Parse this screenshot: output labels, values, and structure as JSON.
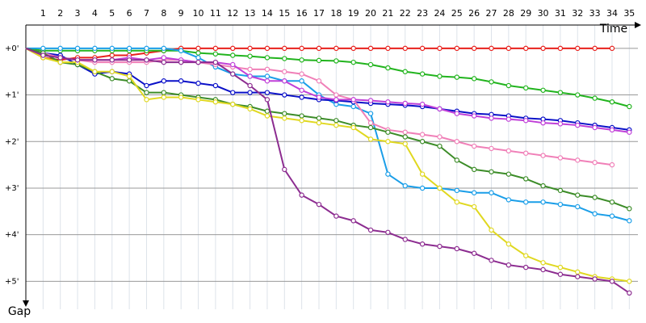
{
  "chart_data": {
    "type": "line",
    "xlabel": "Time",
    "ylabel": "Gap",
    "x": [
      0,
      1,
      2,
      3,
      4,
      5,
      6,
      7,
      8,
      9,
      10,
      11,
      12,
      13,
      14,
      15,
      16,
      17,
      18,
      19,
      20,
      21,
      22,
      23,
      24,
      25,
      26,
      27,
      28,
      29,
      30,
      31,
      32,
      33,
      34,
      35
    ],
    "xlim": [
      0,
      35.5
    ],
    "xticks": [
      1,
      2,
      3,
      4,
      5,
      6,
      7,
      8,
      9,
      10,
      11,
      12,
      13,
      14,
      15,
      16,
      17,
      18,
      19,
      20,
      21,
      22,
      23,
      24,
      25,
      26,
      27,
      28,
      29,
      30,
      31,
      32,
      33,
      34,
      35
    ],
    "ylim": [
      -0.5,
      5.6
    ],
    "yticks": [
      {
        "value": 0,
        "label": "+0'"
      },
      {
        "value": 1,
        "label": "+1'"
      },
      {
        "value": 2,
        "label": "+2'"
      },
      {
        "value": 3,
        "label": "+3'"
      },
      {
        "value": 4,
        "label": "+4'"
      },
      {
        "value": 5,
        "label": "+5'"
      }
    ],
    "grid": true,
    "series": [
      {
        "color": "#e8201c",
        "values": [
          0,
          0.2,
          0.25,
          0.2,
          0.2,
          0.15,
          0.15,
          0.1,
          0.05,
          0,
          0,
          0,
          0,
          0,
          0,
          0,
          0,
          0,
          0,
          0,
          0,
          0,
          0,
          0,
          0,
          0,
          0,
          0,
          0,
          0,
          0,
          0,
          0,
          0,
          0,
          null
        ]
      },
      {
        "color": "#22b41e",
        "values": [
          0,
          0.05,
          0.05,
          0.05,
          0.05,
          0.05,
          0.05,
          0.05,
          0.05,
          0.05,
          0.1,
          0.12,
          0.15,
          0.17,
          0.2,
          0.22,
          0.25,
          0.26,
          0.27,
          0.3,
          0.35,
          0.42,
          0.5,
          0.55,
          0.6,
          0.62,
          0.65,
          0.72,
          0.8,
          0.85,
          0.9,
          0.95,
          1.0,
          1.07,
          1.15,
          1.25
        ]
      },
      {
        "color": "#1a9ee8",
        "values": [
          0,
          0,
          0,
          0,
          0,
          0,
          0,
          0,
          0,
          0.05,
          0.2,
          0.4,
          0.55,
          0.6,
          0.6,
          0.7,
          0.7,
          1.0,
          1.2,
          1.25,
          1.4,
          2.7,
          2.95,
          3.0,
          3.0,
          3.05,
          3.1,
          3.1,
          3.25,
          3.3,
          3.3,
          3.35,
          3.4,
          3.55,
          3.6,
          3.7
        ]
      },
      {
        "color": "#0a10c8",
        "values": [
          0,
          0.1,
          0.15,
          0.35,
          0.55,
          0.5,
          0.55,
          0.8,
          0.7,
          0.7,
          0.75,
          0.8,
          0.95,
          0.95,
          0.95,
          1.0,
          1.05,
          1.1,
          1.12,
          1.15,
          1.18,
          1.2,
          1.22,
          1.25,
          1.3,
          1.35,
          1.4,
          1.42,
          1.45,
          1.5,
          1.52,
          1.55,
          1.6,
          1.65,
          1.7,
          1.75
        ]
      },
      {
        "color": "#f080b8",
        "values": [
          0,
          0.1,
          0.2,
          0.25,
          0.3,
          0.3,
          0.3,
          0.3,
          0.25,
          0.25,
          0.3,
          0.35,
          0.4,
          0.45,
          0.45,
          0.5,
          0.55,
          0.7,
          1.0,
          1.1,
          1.6,
          1.75,
          1.8,
          1.85,
          1.9,
          2.0,
          2.1,
          2.15,
          2.2,
          2.25,
          2.3,
          2.35,
          2.4,
          2.45,
          2.5,
          null
        ]
      },
      {
        "color": "#c040d8",
        "values": [
          0,
          0.15,
          0.2,
          0.25,
          0.25,
          0.25,
          0.2,
          0.25,
          0.2,
          0.25,
          0.3,
          0.3,
          0.35,
          0.6,
          0.7,
          0.7,
          0.9,
          1.05,
          1.1,
          1.1,
          1.12,
          1.15,
          1.18,
          1.2,
          1.3,
          1.4,
          1.45,
          1.5,
          1.52,
          1.55,
          1.6,
          1.62,
          1.65,
          1.7,
          1.75,
          1.8
        ]
      },
      {
        "color": "#3c8c28",
        "values": [
          0,
          0.1,
          0.3,
          0.35,
          0.5,
          0.65,
          0.7,
          0.95,
          0.95,
          1.0,
          1.05,
          1.1,
          1.2,
          1.25,
          1.35,
          1.4,
          1.45,
          1.5,
          1.55,
          1.65,
          1.7,
          1.8,
          1.9,
          2.0,
          2.1,
          2.4,
          2.6,
          2.65,
          2.7,
          2.8,
          2.95,
          3.05,
          3.15,
          3.2,
          3.3,
          3.44
        ]
      },
      {
        "color": "#e0d820",
        "values": [
          0,
          0.2,
          0.3,
          0.3,
          0.5,
          0.5,
          0.6,
          1.1,
          1.05,
          1.05,
          1.1,
          1.15,
          1.2,
          1.3,
          1.45,
          1.5,
          1.55,
          1.6,
          1.65,
          1.7,
          1.95,
          2.0,
          2.05,
          2.7,
          3.0,
          3.3,
          3.4,
          3.9,
          4.2,
          4.45,
          4.6,
          4.7,
          4.8,
          4.9,
          4.95,
          5.0
        ]
      },
      {
        "color": "#8c2c90",
        "values": [
          0,
          0.15,
          0.2,
          0.25,
          0.25,
          0.25,
          0.25,
          0.25,
          0.3,
          0.3,
          0.3,
          0.3,
          0.55,
          0.8,
          1.1,
          2.6,
          3.15,
          3.35,
          3.6,
          3.7,
          3.9,
          3.95,
          4.1,
          4.2,
          4.25,
          4.3,
          4.4,
          4.55,
          4.65,
          4.7,
          4.75,
          4.85,
          4.9,
          4.95,
          5.0,
          5.25
        ]
      }
    ]
  }
}
